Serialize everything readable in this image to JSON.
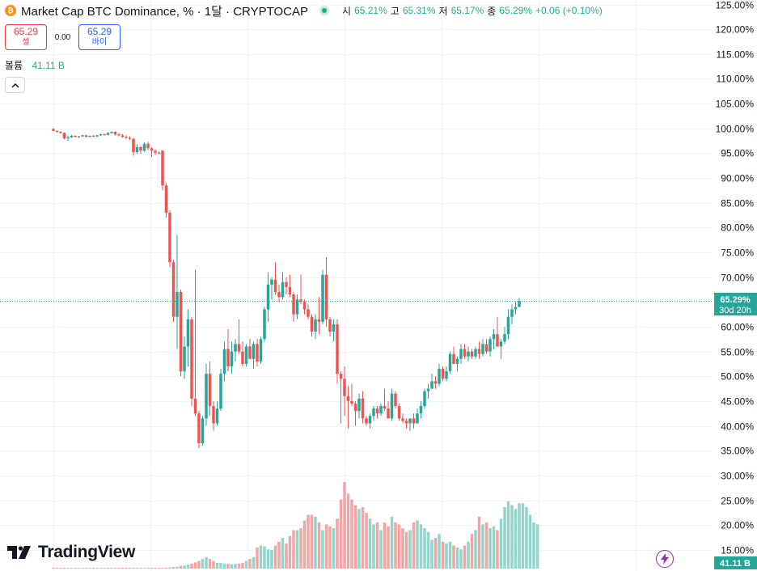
{
  "header": {
    "coin_glyph": "₿",
    "title": "Market Cap BTC Dominance, % · 1달 · CRYPTOCAP",
    "open_label": "시",
    "open": "65.21%",
    "high_label": "고",
    "high": "65.31%",
    "low_label": "저",
    "low": "65.17%",
    "close_label": "종",
    "close": "65.29%",
    "change": "+0.06 (+0.10%)"
  },
  "trade": {
    "sell_price": "65.29",
    "sell_label": "셀",
    "spread": "0.00",
    "buy_price": "65.29",
    "buy_label": "바이"
  },
  "volume_legend": {
    "label": "볼륨",
    "value": "41.11 B"
  },
  "price_badge": {
    "value": "65.29%",
    "countdown": "30d 20h"
  },
  "volume_badge": "41.11 B",
  "brand": {
    "name": "TradingView",
    "logo_icon": "tradingview-logo-icon"
  },
  "colors": {
    "up": "#26a69a",
    "down": "#ef5350",
    "vol_up": "#93d4cb",
    "vol_down": "#f1a6a5",
    "grid": "#f0f3fa",
    "text": "#131722"
  },
  "chart_data": {
    "type": "candlestick",
    "title": "Market Cap BTC Dominance, %",
    "interval": "1M",
    "ylim": [
      13,
      126
    ],
    "y_ticks": [
      "125.00%",
      "120.00%",
      "115.00%",
      "110.00%",
      "105.00%",
      "100.00%",
      "95.00%",
      "90.00%",
      "85.00%",
      "80.00%",
      "75.00%",
      "70.00%",
      "65.00%",
      "60.00%",
      "55.00%",
      "50.00%",
      "45.00%",
      "40.00%",
      "35.00%",
      "30.00%",
      "25.00%",
      "20.00%",
      "15.00%"
    ],
    "y_tick_values": [
      125,
      120,
      115,
      110,
      105,
      100,
      95,
      90,
      85,
      80,
      75,
      70,
      65,
      60,
      55,
      50,
      45,
      40,
      35,
      30,
      25,
      20,
      15
    ],
    "last_price": 65.29,
    "candles": [
      [
        99.9,
        100.0,
        99.4,
        99.5
      ],
      [
        99.5,
        99.6,
        99.2,
        99.3
      ],
      [
        99.3,
        99.4,
        98.9,
        99.1
      ],
      [
        99.1,
        99.2,
        97.8,
        98.0
      ],
      [
        98.0,
        98.6,
        97.5,
        98.2
      ],
      [
        98.2,
        98.7,
        98.1,
        98.5
      ],
      [
        98.5,
        98.6,
        98.2,
        98.3
      ],
      [
        98.3,
        98.5,
        98.1,
        98.4
      ],
      [
        98.4,
        98.7,
        98.3,
        98.6
      ],
      [
        98.6,
        98.7,
        98.2,
        98.3
      ],
      [
        98.3,
        98.6,
        98.2,
        98.5
      ],
      [
        98.5,
        98.7,
        98.3,
        98.4
      ],
      [
        98.4,
        98.7,
        98.2,
        98.6
      ],
      [
        98.6,
        98.9,
        98.5,
        98.8
      ],
      [
        98.8,
        99.0,
        98.6,
        98.7
      ],
      [
        98.7,
        99.2,
        98.6,
        99.1
      ],
      [
        99.1,
        99.4,
        98.9,
        99.3
      ],
      [
        99.3,
        99.4,
        98.6,
        98.8
      ],
      [
        98.8,
        99.1,
        98.4,
        98.6
      ],
      [
        98.6,
        98.9,
        98.1,
        98.3
      ],
      [
        98.3,
        98.6,
        97.9,
        98.1
      ],
      [
        98.1,
        98.4,
        97.7,
        97.9
      ],
      [
        97.9,
        98.1,
        94.5,
        95.2
      ],
      [
        95.2,
        96.8,
        94.8,
        96.2
      ],
      [
        96.2,
        96.5,
        94.9,
        95.5
      ],
      [
        95.5,
        97.2,
        95.3,
        96.9
      ],
      [
        96.9,
        97.3,
        95.6,
        96.0
      ],
      [
        96.0,
        96.2,
        94.2,
        95.5
      ],
      [
        95.5,
        95.8,
        94.6,
        95.1
      ],
      [
        95.1,
        95.4,
        94.8,
        95.0
      ],
      [
        95.5,
        95.6,
        87.5,
        88.5
      ],
      [
        88.5,
        89.0,
        82.0,
        83.0
      ],
      [
        83.0,
        83.5,
        72.0,
        73.0
      ],
      [
        73.0,
        73.5,
        61.0,
        62.0
      ],
      [
        62.0,
        78.5,
        55.5,
        67.0
      ],
      [
        67.0,
        67.5,
        50.0,
        51.0
      ],
      [
        51.0,
        58.0,
        49.5,
        56.0
      ],
      [
        56.0,
        63.5,
        52.0,
        61.5
      ],
      [
        61.5,
        62.0,
        44.0,
        45.5
      ],
      [
        45.5,
        71.5,
        42.0,
        42.5
      ],
      [
        42.5,
        43.0,
        35.5,
        36.5
      ],
      [
        36.5,
        42.0,
        36.0,
        41.5
      ],
      [
        41.5,
        52.5,
        40.0,
        50.5
      ],
      [
        50.5,
        53.0,
        42.0,
        44.0
      ],
      [
        44.0,
        45.0,
        39.0,
        40.5
      ],
      [
        40.5,
        45.0,
        40.0,
        43.5
      ],
      [
        43.5,
        51.5,
        43.0,
        50.5
      ],
      [
        50.5,
        57.0,
        49.0,
        55.5
      ],
      [
        55.5,
        59.5,
        51.0,
        52.0
      ],
      [
        52.0,
        57.0,
        50.5,
        55.0
      ],
      [
        55.0,
        57.5,
        53.0,
        56.5
      ],
      [
        56.5,
        61.5,
        54.5,
        55.0
      ],
      [
        55.0,
        57.0,
        52.0,
        52.5
      ],
      [
        52.5,
        56.5,
        52.0,
        56.0
      ],
      [
        56.0,
        57.5,
        53.5,
        53.5
      ],
      [
        53.5,
        57.0,
        51.5,
        56.5
      ],
      [
        56.5,
        57.5,
        52.0,
        53.0
      ],
      [
        53.0,
        58.0,
        52.5,
        57.5
      ],
      [
        57.5,
        64.0,
        57.0,
        63.5
      ],
      [
        63.5,
        71.0,
        61.0,
        68.5
      ],
      [
        68.5,
        70.0,
        65.5,
        69.5
      ],
      [
        69.5,
        73.0,
        66.5,
        67.0
      ],
      [
        67.0,
        68.5,
        65.0,
        66.0
      ],
      [
        66.0,
        71.0,
        65.5,
        69.0
      ],
      [
        69.0,
        70.0,
        66.5,
        68.0
      ],
      [
        68.0,
        70.5,
        66.0,
        66.5
      ],
      [
        66.5,
        67.0,
        61.0,
        62.5
      ],
      [
        62.5,
        66.5,
        61.5,
        65.5
      ],
      [
        65.5,
        70.5,
        64.5,
        65.0
      ],
      [
        65.0,
        65.5,
        62.5,
        63.5
      ],
      [
        63.5,
        64.5,
        61.5,
        62.0
      ],
      [
        62.0,
        62.5,
        58.0,
        59.0
      ],
      [
        59.0,
        62.5,
        57.5,
        61.5
      ],
      [
        61.5,
        66.0,
        58.5,
        61.0
      ],
      [
        61.0,
        71.5,
        60.5,
        70.5
      ],
      [
        70.5,
        74.0,
        60.0,
        61.5
      ],
      [
        61.5,
        62.0,
        58.0,
        59.0
      ],
      [
        59.0,
        61.5,
        57.0,
        60.5
      ],
      [
        60.5,
        61.5,
        48.5,
        50.5
      ],
      [
        50.5,
        51.0,
        40.5,
        49.5
      ],
      [
        49.5,
        52.0,
        42.0,
        46.0
      ],
      [
        46.0,
        48.0,
        39.5,
        45.0
      ],
      [
        45.0,
        48.5,
        44.0,
        44.5
      ],
      [
        44.5,
        45.0,
        40.0,
        43.0
      ],
      [
        43.0,
        46.5,
        41.5,
        45.5
      ],
      [
        45.5,
        47.0,
        40.5,
        41.5
      ],
      [
        41.5,
        42.0,
        40.0,
        40.5
      ],
      [
        40.5,
        42.5,
        39.5,
        42.0
      ],
      [
        42.0,
        44.0,
        41.0,
        43.5
      ],
      [
        43.5,
        44.0,
        41.5,
        42.5
      ],
      [
        42.5,
        44.5,
        42.0,
        44.0
      ],
      [
        44.0,
        47.5,
        43.0,
        43.5
      ],
      [
        43.5,
        45.0,
        41.5,
        41.5
      ],
      [
        41.5,
        47.5,
        41.0,
        46.5
      ],
      [
        46.5,
        47.0,
        43.5,
        44.0
      ],
      [
        44.0,
        44.5,
        41.0,
        41.5
      ],
      [
        41.5,
        42.5,
        40.5,
        41.0
      ],
      [
        41.0,
        41.5,
        39.5,
        40.5
      ],
      [
        40.5,
        41.5,
        39.0,
        41.5
      ],
      [
        41.5,
        42.5,
        39.5,
        40.5
      ],
      [
        40.5,
        43.5,
        40.5,
        42.5
      ],
      [
        42.5,
        45.0,
        41.5,
        44.0
      ],
      [
        44.0,
        47.5,
        43.5,
        47.0
      ],
      [
        47.0,
        48.5,
        45.5,
        47.5
      ],
      [
        47.5,
        50.5,
        47.5,
        49.0
      ],
      [
        49.0,
        50.0,
        47.5,
        48.5
      ],
      [
        48.5,
        52.5,
        48.0,
        51.5
      ],
      [
        51.5,
        52.0,
        49.0,
        49.5
      ],
      [
        49.5,
        52.0,
        49.0,
        51.0
      ],
      [
        51.0,
        55.0,
        50.5,
        54.5
      ],
      [
        54.5,
        56.0,
        52.5,
        52.5
      ],
      [
        52.5,
        54.0,
        51.0,
        53.5
      ],
      [
        53.5,
        56.5,
        52.5,
        55.5
      ],
      [
        55.5,
        56.5,
        53.5,
        54.0
      ],
      [
        54.0,
        56.0,
        53.0,
        55.0
      ],
      [
        55.0,
        55.5,
        53.5,
        54.0
      ],
      [
        54.0,
        56.0,
        53.5,
        55.5
      ],
      [
        55.5,
        57.0,
        53.5,
        54.5
      ],
      [
        54.5,
        57.5,
        54.0,
        56.5
      ],
      [
        56.5,
        57.5,
        54.5,
        55.0
      ],
      [
        55.0,
        58.0,
        54.0,
        57.5
      ],
      [
        57.5,
        59.5,
        55.5,
        58.5
      ],
      [
        58.5,
        62.0,
        56.0,
        56.0
      ],
      [
        56.0,
        57.5,
        53.5,
        57.0
      ],
      [
        57.0,
        60.0,
        56.5,
        58.5
      ],
      [
        58.5,
        63.5,
        57.5,
        62.0
      ],
      [
        62.0,
        64.5,
        60.5,
        63.5
      ],
      [
        63.5,
        65.0,
        62.5,
        64.0
      ],
      [
        64.0,
        65.8,
        63.9,
        65.21
      ]
    ],
    "volume_ylim": [
      0,
      40
    ],
    "volume_values": [
      0.08,
      0.08,
      0.08,
      0.08,
      0.08,
      0.08,
      0.08,
      0.08,
      0.08,
      0.08,
      0.08,
      0.08,
      0.08,
      0.08,
      0.08,
      0.08,
      0.08,
      0.08,
      0.08,
      0.08,
      0.08,
      0.08,
      0.08,
      0.08,
      0.08,
      0.08,
      0.08,
      0.08,
      0.1,
      0.12,
      0.15,
      0.2,
      0.3,
      0.4,
      0.5,
      0.7,
      0.8,
      1.0,
      1.3,
      1.6,
      2.0,
      2.5,
      3.0,
      2.5,
      2.0,
      1.5,
      1.5,
      1.3,
      1.2,
      1.1,
      1.2,
      1.3,
      1.5,
      2.0,
      2.5,
      3.0,
      5.5,
      6.0,
      5.8,
      5.0,
      4.8,
      6.0,
      7.0,
      8.0,
      6.5,
      8.5,
      10.0,
      10.0,
      10.5,
      12.5,
      14.0,
      14.0,
      13.5,
      12.0,
      10.0,
      11.5,
      11.0,
      10.5,
      13.0,
      18.0,
      22.5,
      19.5,
      18.0,
      16.5,
      15.5,
      16.0,
      14.5,
      13.0,
      11.5,
      12.0,
      10.0,
      12.0,
      11.0,
      13.5,
      12.0,
      11.5,
      10.5,
      9.5,
      10.0,
      12.0,
      12.5,
      11.5,
      10.5,
      9.5,
      7.5,
      8.0,
      9.0,
      7.0,
      6.5,
      7.0,
      6.0,
      5.5,
      5.0,
      6.0,
      7.0,
      9.0,
      10.0,
      13.5,
      11.5,
      12.0,
      10.5,
      11.0,
      10.0,
      13.0,
      16.0,
      17.5,
      16.5,
      15.5,
      17.0,
      17.0,
      16.0,
      14.0,
      12.0,
      11.5
    ]
  }
}
